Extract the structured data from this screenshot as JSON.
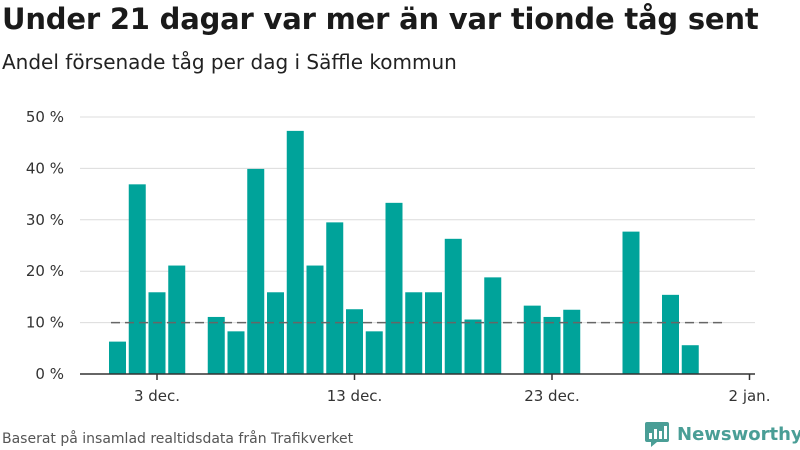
{
  "chart_data": {
    "type": "bar",
    "title": "Under 21 dagar var mer än var tionde tåg sent",
    "subtitle": "Andel försenade tåg per dag i Säffle kommun",
    "source": "Baserat på insamlad realtidsdata från Trafikverket",
    "x": [
      "1 dec.",
      "2 dec.",
      "3 dec.",
      "4 dec.",
      "5 dec.",
      "6 dec.",
      "7 dec.",
      "8 dec.",
      "9 dec.",
      "10 dec.",
      "11 dec.",
      "12 dec.",
      "13 dec.",
      "14 dec.",
      "15 dec.",
      "16 dec.",
      "17 dec.",
      "18 dec.",
      "19 dec.",
      "20 dec.",
      "21 dec.",
      "22 dec.",
      "23 dec.",
      "24 dec.",
      "25 dec.",
      "26 dec.",
      "27 dec.",
      "28 dec.",
      "29 dec.",
      "30 dec.",
      "31 dec."
    ],
    "values": [
      6.3,
      36.9,
      15.9,
      21.1,
      null,
      11.1,
      8.3,
      39.9,
      15.9,
      47.3,
      21.1,
      29.5,
      12.6,
      8.3,
      33.3,
      15.9,
      15.9,
      26.3,
      10.6,
      18.8,
      null,
      13.3,
      11.1,
      12.5,
      null,
      null,
      27.7,
      null,
      15.4,
      5.6,
      null
    ],
    "x_ticks": [
      "3 dec.",
      "13 dec.",
      "23 dec.",
      "2 jan."
    ],
    "y_ticks": [
      "0 %",
      "10 %",
      "20 %",
      "30 %",
      "40 %",
      "50 %"
    ],
    "ylim": [
      0,
      50
    ],
    "reference_line": 10,
    "grid": true,
    "bar_color": "#00a39a",
    "reference_color": "#666666"
  },
  "brand": {
    "name": "Newsworthy",
    "color": "#4a9e96"
  }
}
